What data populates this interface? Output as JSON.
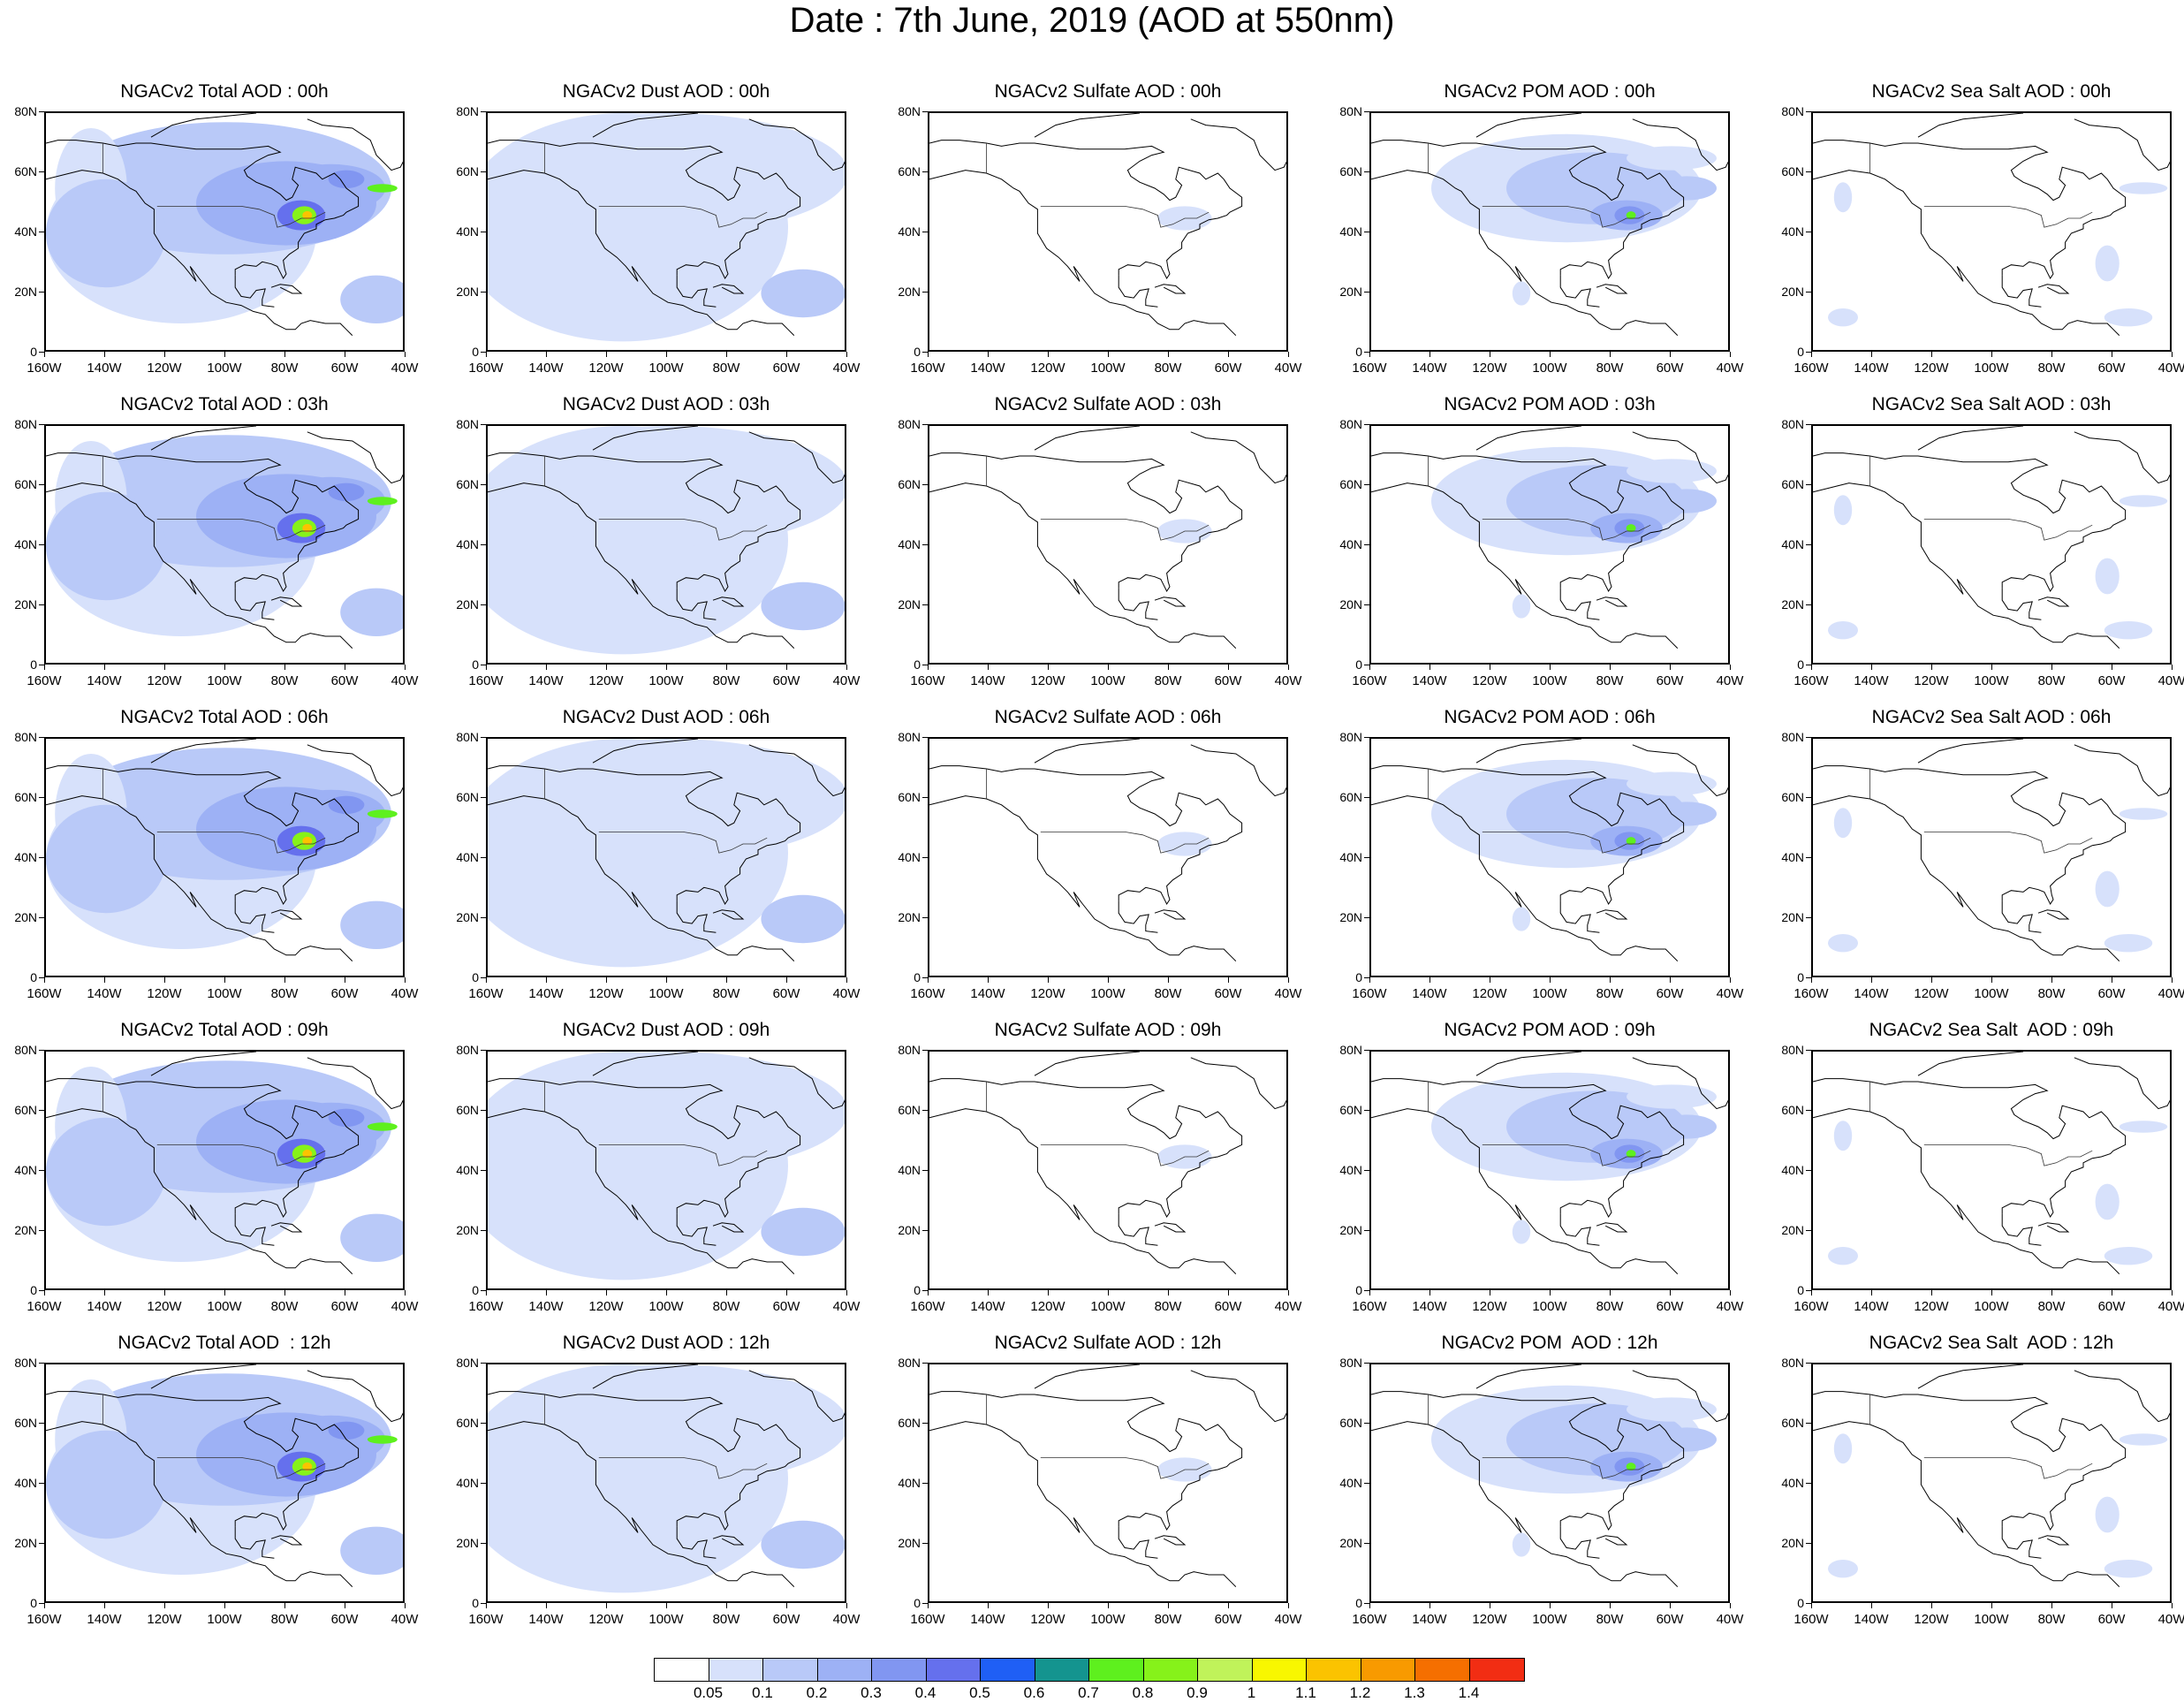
{
  "title": "Date : 7th June, 2019 (AOD at 550nm)",
  "panels": [
    {
      "title": "NGACv2 Total AOD : 00h",
      "field": "total"
    },
    {
      "title": "NGACv2 Dust AOD : 00h",
      "field": "dust"
    },
    {
      "title": "NGACv2 Sulfate AOD : 00h",
      "field": "sulfate"
    },
    {
      "title": "NGACv2 POM AOD : 00h",
      "field": "pom"
    },
    {
      "title": "NGACv2 Sea Salt AOD : 00h",
      "field": "seasalt"
    },
    {
      "title": "NGACv2 Total AOD : 03h",
      "field": "total"
    },
    {
      "title": "NGACv2 Dust AOD : 03h",
      "field": "dust"
    },
    {
      "title": "NGACv2 Sulfate AOD : 03h",
      "field": "sulfate"
    },
    {
      "title": "NGACv2 POM AOD : 03h",
      "field": "pom"
    },
    {
      "title": "NGACv2 Sea Salt AOD : 03h",
      "field": "seasalt"
    },
    {
      "title": "NGACv2 Total AOD : 06h",
      "field": "total"
    },
    {
      "title": "NGACv2 Dust AOD : 06h",
      "field": "dust"
    },
    {
      "title": "NGACv2 Sulfate AOD : 06h",
      "field": "sulfate"
    },
    {
      "title": "NGACv2 POM AOD : 06h",
      "field": "pom"
    },
    {
      "title": "NGACv2 Sea Salt AOD : 06h",
      "field": "seasalt"
    },
    {
      "title": "NGACv2 Total AOD : 09h",
      "field": "total"
    },
    {
      "title": "NGACv2 Dust AOD : 09h",
      "field": "dust"
    },
    {
      "title": "NGACv2 Sulfate AOD : 09h",
      "field": "sulfate"
    },
    {
      "title": "NGACv2 POM AOD : 09h",
      "field": "pom"
    },
    {
      "title": "NGACv2 Sea Salt  AOD : 09h",
      "field": "seasalt"
    },
    {
      "title": "NGACv2 Total AOD  : 12h",
      "field": "total"
    },
    {
      "title": "NGACv2 Dust AOD : 12h",
      "field": "dust"
    },
    {
      "title": "NGACv2 Sulfate AOD : 12h",
      "field": "sulfate"
    },
    {
      "title": "NGACv2 POM  AOD : 12h",
      "field": "pom"
    },
    {
      "title": "NGACv2 Sea Salt  AOD : 12h",
      "field": "seasalt"
    }
  ],
  "y_ticks": [
    "80N",
    "60N",
    "40N",
    "20N",
    "0"
  ],
  "x_ticks": [
    "160W",
    "140W",
    "120W",
    "100W",
    "80W",
    "60W",
    "40W"
  ],
  "colorbar": {
    "labels": [
      "0.05",
      "0.1",
      "0.2",
      "0.3",
      "0.4",
      "0.5",
      "0.6",
      "0.7",
      "0.8",
      "0.9",
      "1",
      "1.1",
      "1.2",
      "1.3",
      "1.4"
    ],
    "colors": [
      "#ffffff",
      "#d7e1fb",
      "#b9c9f8",
      "#9db1f5",
      "#8196f1",
      "#6570ed",
      "#1f5ff5",
      "#14948f",
      "#5ef01e",
      "#86f21a",
      "#c0f35a",
      "#f8f700",
      "#fbc300",
      "#f89a00",
      "#f56f00",
      "#f22d13"
    ]
  }
}
